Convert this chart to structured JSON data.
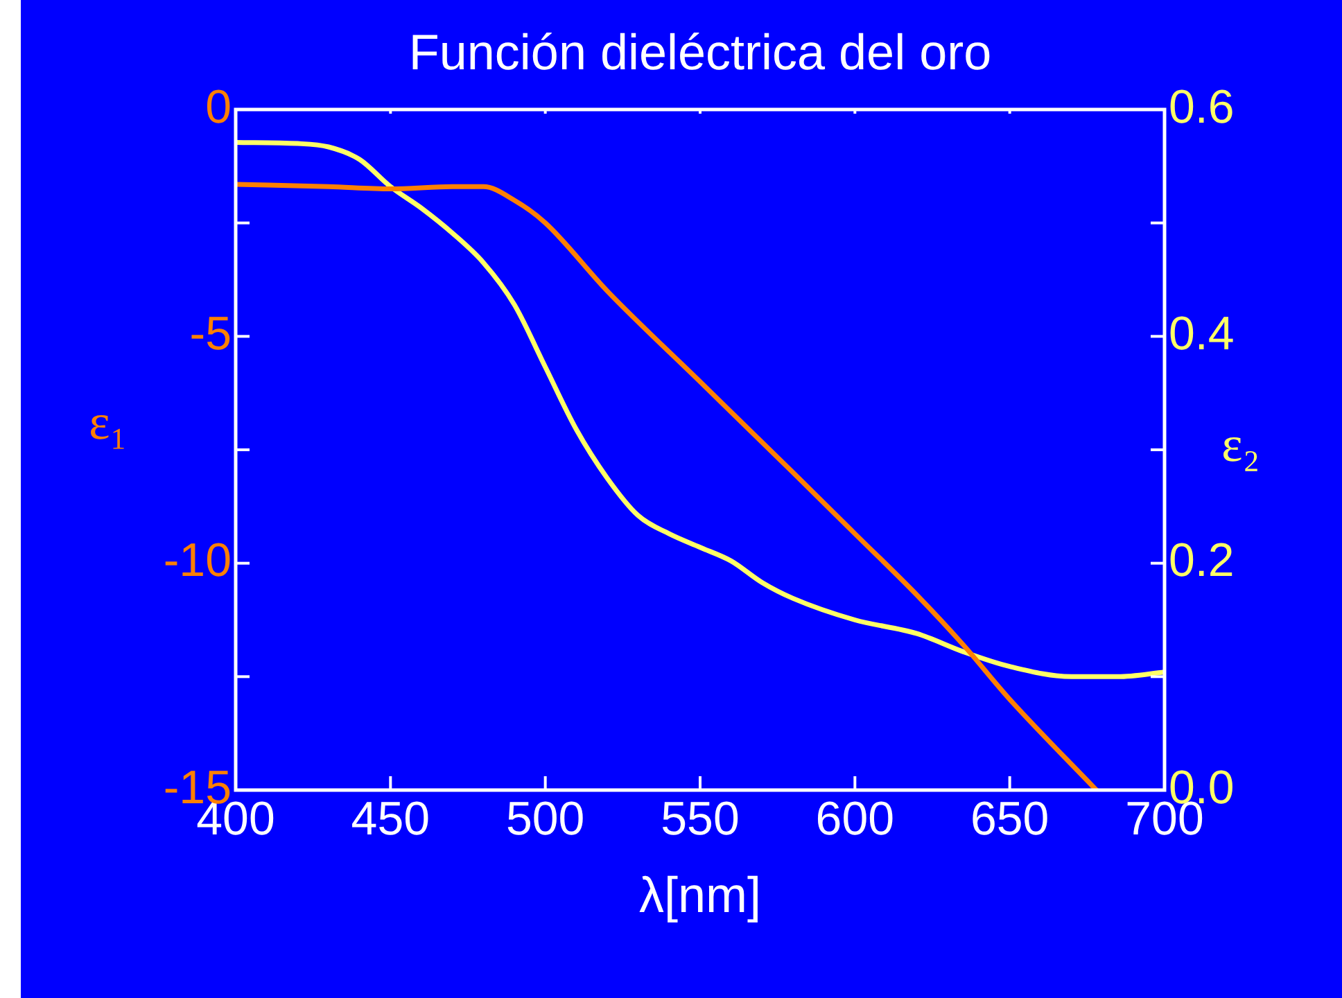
{
  "chart_data": {
    "type": "line",
    "title": "Función dieléctrica del oro",
    "xlabel": "λ[nm]",
    "ylabel": "ε₁",
    "y2label": "ε₂",
    "xlim": [
      400,
      700
    ],
    "xticks": [
      400,
      450,
      500,
      550,
      600,
      650,
      700
    ],
    "ylim": [
      -15,
      0
    ],
    "yticks": [
      -15,
      {
        "value": -12.5,
        "label": null
      },
      -10,
      {
        "value": -7.5,
        "label": null
      },
      -5,
      {
        "value": -2.5,
        "label": null
      },
      0
    ],
    "y2lim": [
      0,
      0.6
    ],
    "y2ticks": [
      {
        "value": 0,
        "label": "0.0"
      },
      {
        "value": 0.1,
        "label": null
      },
      0.2,
      {
        "value": 0.3,
        "label": null
      },
      0.4,
      {
        "value": 0.5,
        "label": null
      },
      0.6
    ],
    "grid": false,
    "legend": false,
    "marker": "none",
    "line_style": "solid",
    "series": [
      {
        "color": "#ff8000",
        "x": [
          400,
          430,
          450,
          470,
          480,
          490,
          500,
          520,
          550,
          580,
          600,
          620,
          635,
          650,
          678
        ],
        "values": [
          -1.65,
          -1.7,
          -1.75,
          -1.7,
          -1.7,
          -2.0,
          -2.5,
          -4.0,
          -6.0,
          -8.0,
          -9.35,
          -10.7,
          -11.8,
          -13.0,
          -15
        ]
      },
      {
        "color": "#ffff66",
        "axis": "y2",
        "x": [
          400,
          420,
          430,
          440,
          450,
          460,
          470,
          480,
          490,
          500,
          510,
          520,
          530,
          540,
          550,
          560,
          570,
          580,
          600,
          620,
          635,
          650,
          670,
          685,
          700
        ],
        "values": [
          0.571,
          0.57,
          0.567,
          0.556,
          0.532,
          0.513,
          0.491,
          0.465,
          0.428,
          0.373,
          0.318,
          0.275,
          0.242,
          0.226,
          0.214,
          0.202,
          0.183,
          0.169,
          0.15,
          0.138,
          0.122,
          0.109,
          0.1,
          0.1,
          0.104
        ]
      }
    ]
  }
}
